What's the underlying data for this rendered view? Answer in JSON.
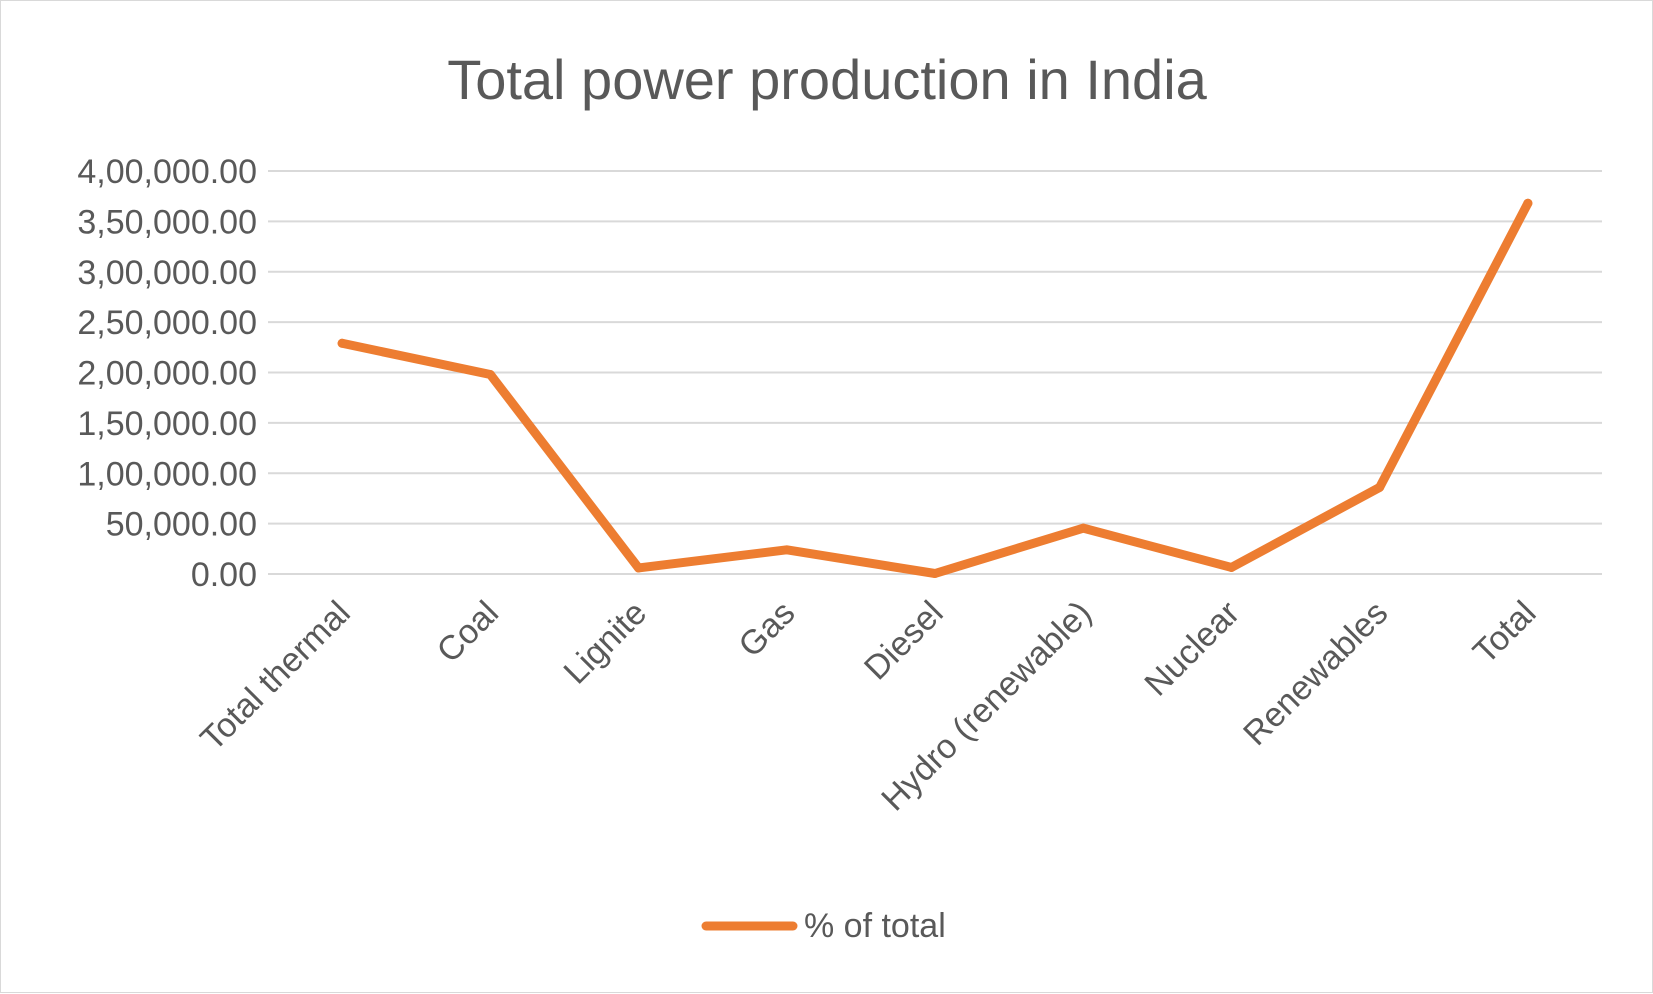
{
  "chart_data": {
    "type": "line",
    "title": "Total power production in India",
    "categories": [
      "Total thermal",
      "Coal",
      "Lignite",
      "Gas",
      "Diesel",
      "Hydro (renewable)",
      "Nuclear",
      "Renewables",
      "Total"
    ],
    "series": [
      {
        "name": "% of total",
        "values": [
          229000,
          198000,
          6000,
          24000,
          500,
          45500,
          6500,
          86000,
          368000
        ]
      }
    ],
    "xlabel": "",
    "ylabel": "",
    "ylim": [
      0,
      400000
    ],
    "y_ticks": [
      "0.00",
      "50,000.00",
      "1,00,000.00",
      "1,50,000.00",
      "2,00,000.00",
      "2,50,000.00",
      "3,00,000.00",
      "3,50,000.00",
      "4,00,000.00"
    ],
    "grid": true,
    "legend_position": "bottom",
    "colors": {
      "series": "#ED7D31",
      "grid": "#d9d9d9",
      "text": "#595959"
    }
  }
}
